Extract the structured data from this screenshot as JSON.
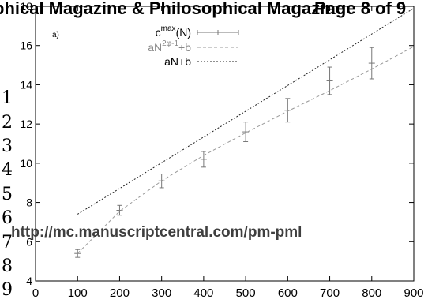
{
  "header": {
    "journal_left": "phical Magazine & Philosophical Magazine",
    "page_label": "Page 8 of 9"
  },
  "line_numbers": [
    "1",
    "2",
    "3",
    "4",
    "5",
    "6",
    "7",
    "8",
    "9"
  ],
  "watermark_url": "http://mc.manuscriptcentral.com/pm-pml",
  "chart_data": {
    "type": "line",
    "panel_label": "a)",
    "xlim": [
      0,
      900
    ],
    "ylim": [
      4,
      18
    ],
    "x_ticks": [
      0,
      100,
      200,
      300,
      400,
      500,
      600,
      700,
      800,
      900
    ],
    "y_ticks": [
      4,
      6,
      8,
      10,
      12,
      14,
      16,
      18
    ],
    "grid": false,
    "legend_position": "top-left",
    "legend_entries": [
      {
        "main": "c",
        "sup": "max",
        "tail": "(N)"
      },
      {
        "main": "aN",
        "sup": "2φ-1",
        "tail": "+b"
      },
      {
        "main": "aN+b",
        "sup": "",
        "tail": ""
      }
    ],
    "series": [
      {
        "style": "errorbars",
        "color": "#777777",
        "x": [
          100,
          200,
          300,
          400,
          500,
          600,
          700,
          800
        ],
        "y": [
          5.4,
          7.6,
          9.1,
          10.2,
          11.6,
          12.7,
          14.2,
          15.1
        ],
        "err": [
          0.2,
          0.25,
          0.35,
          0.4,
          0.5,
          0.6,
          0.7,
          0.8
        ]
      },
      {
        "style": "dashed",
        "color": "#9a9a9a",
        "x": [
          100,
          200,
          300,
          400,
          500,
          600,
          700,
          800,
          900
        ],
        "y": [
          5.4,
          7.55,
          9.1,
          10.4,
          11.55,
          12.65,
          13.7,
          14.8,
          15.95
        ]
      },
      {
        "style": "dotted",
        "color": "#222222",
        "x": [
          100,
          900
        ],
        "y": [
          7.4,
          17.9
        ]
      }
    ]
  }
}
